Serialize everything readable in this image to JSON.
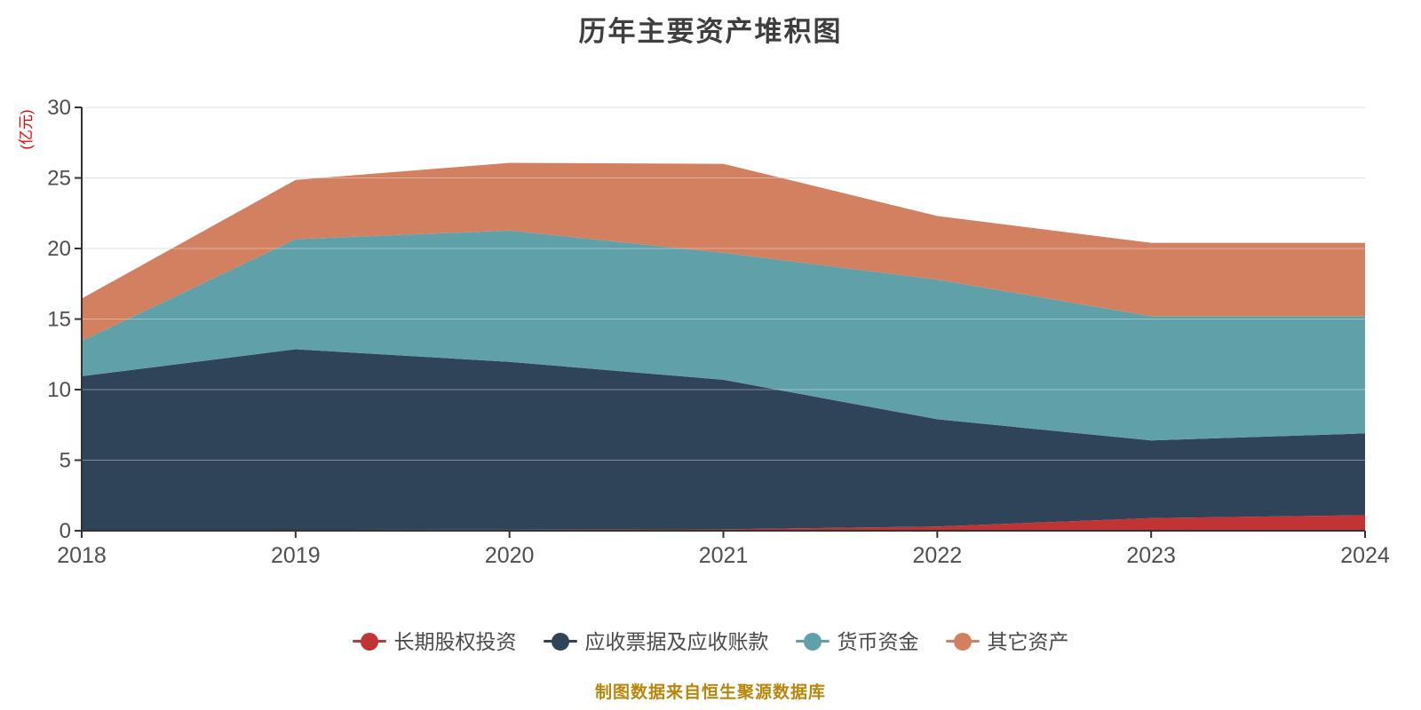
{
  "title": "历年主要资产堆积图",
  "footer": "制图数据来自恒生聚源数据库",
  "colors": {
    "background": "#ffffff",
    "title": "#3e3e3e",
    "axis": "#333333",
    "tick_label": "#4f4f4f",
    "grid": "#cccccc",
    "grid_overlay": "rgba(255,255,255,0.38)",
    "unit_label": "#ee0000",
    "legend_text": "#4a4a4a",
    "footer_text": "#b8860b"
  },
  "chart_data": {
    "type": "area",
    "stacked": true,
    "title": "历年主要资产堆积图",
    "unit_label": "(亿元)",
    "categories": [
      "2018",
      "2019",
      "2020",
      "2021",
      "2022",
      "2023",
      "2024"
    ],
    "ylim": [
      0,
      30
    ],
    "yticks": [
      0,
      5,
      10,
      15,
      20,
      25,
      30
    ],
    "grid": "horizontal",
    "legend_position": "bottom",
    "series": [
      {
        "name": "长期股权投资",
        "key": "long-term-equity-investment",
        "color": "#c23335",
        "values": [
          0.05,
          0.06,
          0.07,
          0.1,
          0.3,
          0.9,
          1.1
        ]
      },
      {
        "name": "应收票据及应收账款",
        "key": "notes-and-accounts-receivable",
        "color": "#2f4458",
        "values": [
          10.9,
          12.8,
          11.9,
          10.6,
          7.6,
          5.5,
          5.8
        ]
      },
      {
        "name": "货币资金",
        "key": "monetary-funds",
        "color": "#60a0a8",
        "values": [
          2.5,
          7.8,
          9.3,
          9.0,
          9.9,
          8.8,
          8.3
        ]
      },
      {
        "name": "其它资产",
        "key": "other-assets",
        "color": "#d28060",
        "values": [
          3.0,
          4.2,
          4.8,
          6.3,
          4.5,
          5.2,
          5.2
        ]
      }
    ]
  }
}
